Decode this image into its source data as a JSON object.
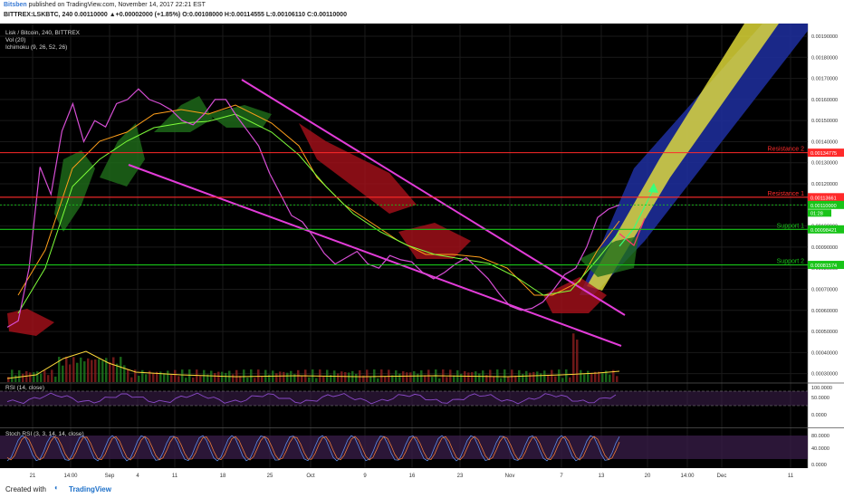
{
  "header": {
    "user": "Bitsben",
    "published_text": "published on TradingView.com, November 14, 2017 22:21 EST",
    "ohlc_line": "BITTREX:LSKBTC, 240  0.00110000  ▲+0.00002000 (+1.85%)  O:0.00108000  H:0.00114555  L:0.00106110  C:0.00110000"
  },
  "legend": {
    "symbol": "Lisk / Bitcoin, 240, BITTREX",
    "vol": "Vol (20)",
    "ichimoku": "Ichimoku (9, 26, 52, 26)"
  },
  "footer": {
    "created_with": "Created with",
    "brand": "TradingView",
    "logo_glyph": "◐"
  },
  "colors": {
    "background": "#000000",
    "grid": "#1a1a1a",
    "resistance": "#ff2a2a",
    "support": "#18c418",
    "trend_channel": "#e23cd8",
    "projection_band": "#e8e23a",
    "projection_outer": "#1f2fa0",
    "price_line": "#d64ed4",
    "tenkan": "#ff9f1a",
    "kijun": "#7fff3a",
    "green_cloud": "#1f6e1a",
    "red_cloud": "#a8101a",
    "oscillator_fill": "#3a1e4a"
  },
  "chart_data": {
    "type": "line",
    "title": "Lisk / Bitcoin, 240, BITTREX",
    "x_tick_labels": [
      "21",
      "14:00",
      "Sep",
      "4",
      "11",
      "18",
      "25",
      "Oct",
      "9",
      "16",
      "23",
      "Nov",
      "7",
      "13",
      "20",
      "14:00",
      "Dec",
      "11"
    ],
    "y_tick_labels": [
      "0.00190000",
      "0.00180000",
      "0.00170000",
      "0.00160000",
      "0.00150000",
      "0.00140000",
      "0.00130000",
      "0.00120000",
      "0.00110000",
      "0.00100000",
      "0.00090000",
      "0.00080000",
      "0.00070000",
      "0.00060000",
      "0.00050000",
      "0.00040000",
      "0.00030000"
    ],
    "ylim": [
      0.00026,
      0.00196
    ],
    "levels": [
      {
        "name": "Resistance 2",
        "value": 0.00134775,
        "tag": "0.00134775",
        "color": "#ff2a2a"
      },
      {
        "name": "Resistance 1",
        "value": 0.00113661,
        "tag": "0.00113661",
        "color": "#ff2a2a"
      },
      {
        "name": "Support 1",
        "value": 0.00098421,
        "tag": "0.00098421",
        "color": "#18c418"
      },
      {
        "name": "Support 2",
        "value": 0.00081574,
        "tag": "0.00081574",
        "color": "#18c418"
      }
    ],
    "current_price": {
      "value": 0.0011,
      "tag": "0.00110000",
      "countdown": "01:28"
    },
    "series": [
      {
        "values": [
          0.00052,
          0.00055,
          0.0008,
          0.00128,
          0.00115,
          0.00145,
          0.00158,
          0.0014,
          0.0015,
          0.00147,
          0.00158,
          0.0016,
          0.00165,
          0.0016,
          0.00158,
          0.00155,
          0.0015,
          0.00148,
          0.00153,
          0.0016,
          0.0016,
          0.00152,
          0.00145,
          0.00138,
          0.00125,
          0.00115,
          0.00105,
          0.00102,
          0.00095,
          0.00087,
          0.00082,
          0.00085,
          0.00088,
          0.00082,
          0.0008,
          0.00086,
          0.00084,
          0.00083,
          0.00078,
          0.00075,
          0.00078,
          0.00082,
          0.00085,
          0.0008,
          0.00075,
          0.00068,
          0.00062,
          0.0006,
          0.00061,
          0.00064,
          0.0007,
          0.00077,
          0.0008,
          0.0009,
          0.00104,
          0.00108,
          0.0011
        ]
      }
    ]
  },
  "rsi_panel": {
    "label": "RSI (14, close)",
    "ticks": [
      "100.0000",
      "50.0000",
      "0.0000"
    ]
  },
  "stoch_panel": {
    "label": "Stoch RSI (3, 3, 14, 14, close)",
    "ticks": [
      "80.0000",
      "40.0000",
      "0.0000"
    ]
  }
}
